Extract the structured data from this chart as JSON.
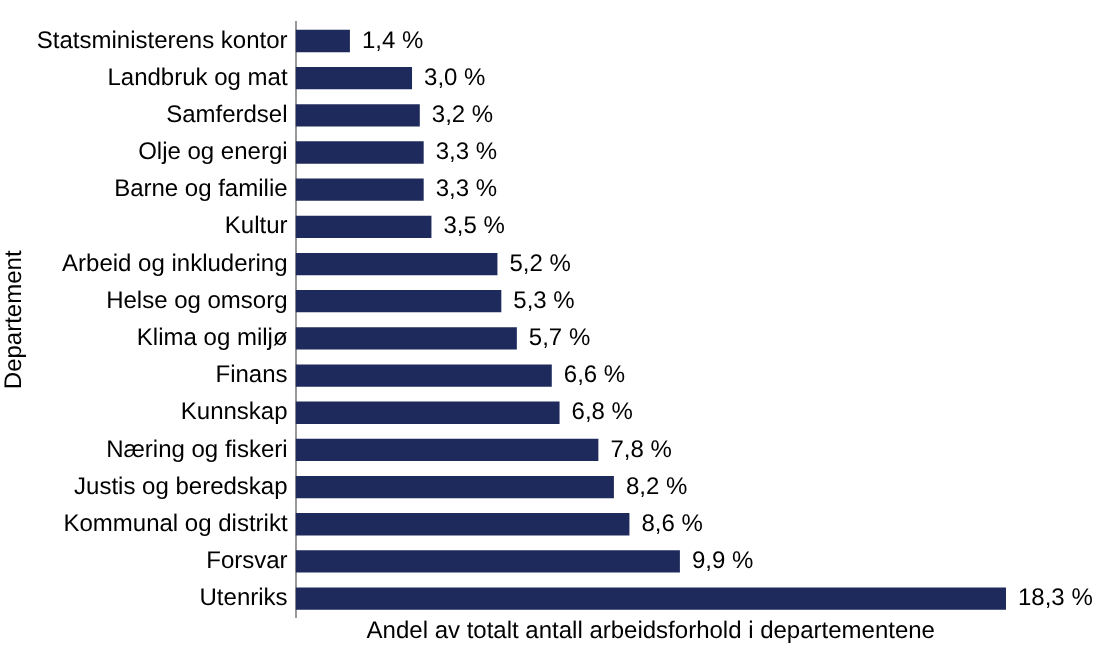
{
  "chart_data": {
    "type": "bar",
    "orientation": "horizontal",
    "xlabel": "Andel av totalt antall arbeidsforhold i departementene",
    "ylabel": "Departement",
    "categories": [
      "Statsministerens kontor",
      "Landbruk og mat",
      "Samferdsel",
      "Olje og energi",
      "Barne og familie",
      "Kultur",
      "Arbeid og inkludering",
      "Helse og omsorg",
      "Klima og miljø",
      "Finans",
      "Kunnskap",
      "Næring og fiskeri",
      "Justis og beredskap",
      "Kommunal og distrikt",
      "Forsvar",
      "Utenriks"
    ],
    "values": [
      1.4,
      3.0,
      3.2,
      3.3,
      3.3,
      3.5,
      5.2,
      5.3,
      5.7,
      6.6,
      6.8,
      7.8,
      8.2,
      8.6,
      9.9,
      18.3
    ],
    "value_labels": [
      "1,4 %",
      "3,0 %",
      "3,2 %",
      "3,3 %",
      "3,3 %",
      "3,5 %",
      "5,2 %",
      "5,3 %",
      "5,7 %",
      "6,6 %",
      "6,8 %",
      "7,8 %",
      "8,2 %",
      "8,6 %",
      "9,9 %",
      "18,3 %"
    ],
    "color": "#1f2a5c",
    "grid": false,
    "legend": false
  }
}
